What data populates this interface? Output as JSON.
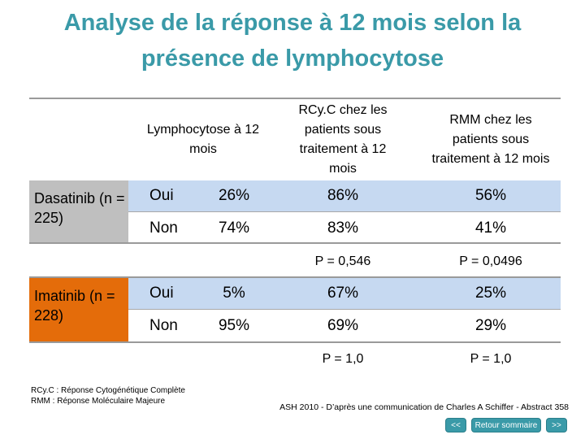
{
  "title_line1": "Analyse de la réponse à 12 mois selon la",
  "title_line2": "présence de lymphocytose",
  "headers": {
    "lymphocytose": "Lymphocytose à 12 mois",
    "rcyc": "RCy.C chez les patients sous traitement à 12 mois",
    "rmm": "RMM chez les patients sous traitement à 12 mois"
  },
  "groups": [
    {
      "drug": "Dasatinib (n = 225)",
      "color": "#bfbfbf",
      "rows": [
        {
          "label": "Oui",
          "pct": "26%",
          "rcyc": "86%",
          "rmm": "56%"
        },
        {
          "label": "Non",
          "pct": "74%",
          "rcyc": "83%",
          "rmm": "41%"
        }
      ],
      "p_rcyc": "P = 0,546",
      "p_rmm": "P = 0,0496"
    },
    {
      "drug": "Imatinib (n = 228)",
      "color": "#e46c0a",
      "rows": [
        {
          "label": "Oui",
          "pct": "5%",
          "rcyc": "67%",
          "rmm": "25%"
        },
        {
          "label": "Non",
          "pct": "95%",
          "rcyc": "69%",
          "rmm": "29%"
        }
      ],
      "p_rcyc": "P = 1,0",
      "p_rmm": "P = 1,0"
    }
  ],
  "band_color": "#c6d9f1",
  "footnote_left": [
    "RCy.C : Réponse Cytogénétique Complète",
    "RMM : Réponse Moléculaire Majeure"
  ],
  "footnote_right": "ASH 2010 - D’après une communication de Charles A Schiffer - Abstract 358",
  "nav": {
    "prev": "<<",
    "summary": "Retour sommaire",
    "next": ">>"
  }
}
